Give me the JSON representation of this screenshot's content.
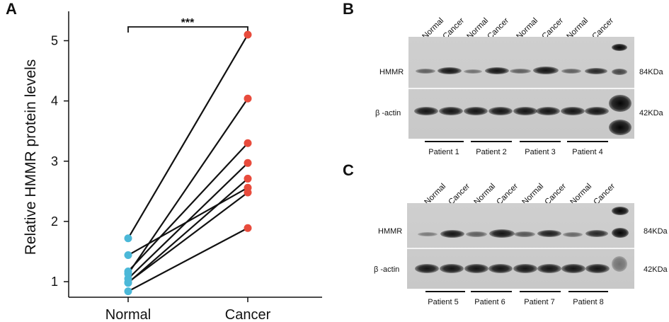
{
  "panels": {
    "a": "A",
    "b": "B",
    "c": "C"
  },
  "chart_data": {
    "type": "scatter",
    "ylabel": "Relative HMMR protein levels",
    "categories": [
      "Normal",
      "Cancer"
    ],
    "yticks": [
      1,
      2,
      3,
      4,
      5
    ],
    "ylim": [
      0.7,
      5.35
    ],
    "significance": "***",
    "normal_color": "#4bb8d8",
    "cancer_color": "#e84b3c",
    "pairs": [
      {
        "normal": 1.72,
        "cancer": 5.1
      },
      {
        "normal": 1.13,
        "cancer": 4.04
      },
      {
        "normal": 1.17,
        "cancer": 3.3
      },
      {
        "normal": 1.05,
        "cancer": 2.97
      },
      {
        "normal": 0.98,
        "cancer": 2.71
      },
      {
        "normal": 1.44,
        "cancer": 2.56
      },
      {
        "normal": 0.99,
        "cancer": 2.48
      },
      {
        "normal": 0.84,
        "cancer": 1.89
      }
    ]
  },
  "blot_b": {
    "lanes": [
      "Normal",
      "Cancer",
      "Normal",
      "Cancer",
      "Normal",
      "Cancer",
      "Normal",
      "Cancer"
    ],
    "row1": "HMMR",
    "row2": "β -actin",
    "kda1": "84KDa",
    "kda2": "42KDa",
    "patients": [
      "Patient 1",
      "Patient 2",
      "Patient 3",
      "Patient 4"
    ]
  },
  "blot_c": {
    "lanes": [
      "Normal",
      "Cancer",
      "Normal",
      "Cancer",
      "Normal",
      "Cancer",
      "Normal",
      "Cancer"
    ],
    "row1": "HMMR",
    "row2": "β -actin",
    "kda1": "84KDa",
    "kda2": "42KDa",
    "patients": [
      "Patient 5",
      "Patient 6",
      "Patient 7",
      "Patient 8"
    ]
  }
}
